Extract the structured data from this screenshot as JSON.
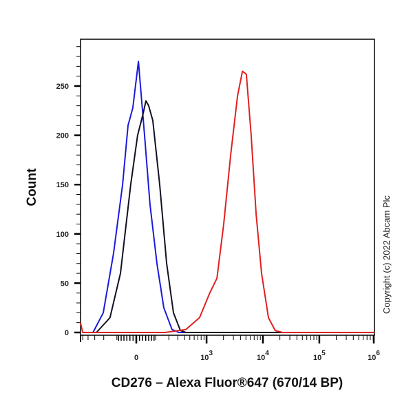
{
  "chart_data": {
    "type": "line",
    "title": "",
    "xlabel": "CD276 – Alexa Fluor®647 (670/14 BP)",
    "ylabel": "Count",
    "x_scale": "biexponential",
    "xlim": [
      -550,
      1000000
    ],
    "ylim": [
      0,
      300
    ],
    "grid": false,
    "x_ticks": [
      {
        "value": 0,
        "base": "0",
        "exp": ""
      },
      {
        "value": 1000,
        "base": "10",
        "exp": "3"
      },
      {
        "value": 10000,
        "base": "10",
        "exp": "4"
      },
      {
        "value": 100000,
        "base": "10",
        "exp": "5"
      },
      {
        "value": 1000000,
        "base": "10",
        "exp": "6"
      }
    ],
    "y_ticks": [
      "0",
      "50",
      "100",
      "150",
      "200",
      "250"
    ],
    "series": [
      {
        "color": "#1a1adc",
        "points": [
          [
            -400,
            0
          ],
          [
            -324,
            0
          ],
          [
            -205,
            20
          ],
          [
            -122,
            80
          ],
          [
            -67,
            150
          ],
          [
            -39,
            210
          ],
          [
            -16,
            228
          ],
          [
            10,
            275
          ],
          [
            39,
            200
          ],
          [
            67,
            130
          ],
          [
            108,
            70
          ],
          [
            157,
            25
          ],
          [
            232,
            3
          ],
          [
            315,
            0
          ],
          [
            1000000,
            0
          ]
        ]
      },
      {
        "color": "#111122",
        "points": [
          [
            -400,
            0
          ],
          [
            -279,
            0
          ],
          [
            -147,
            15
          ],
          [
            -79,
            60
          ],
          [
            -26,
            150
          ],
          [
            6,
            200
          ],
          [
            32,
            222
          ],
          [
            46,
            235
          ],
          [
            60,
            230
          ],
          [
            83,
            215
          ],
          [
            126,
            150
          ],
          [
            180,
            70
          ],
          [
            247,
            20
          ],
          [
            335,
            2
          ],
          [
            422,
            0
          ],
          [
            1000000,
            0
          ]
        ]
      },
      {
        "color": "#e02020",
        "points": [
          [
            -550,
            10
          ],
          [
            -500,
            0
          ],
          [
            168,
            0
          ],
          [
            422,
            3
          ],
          [
            748,
            15
          ],
          [
            1140,
            40
          ],
          [
            1530,
            55
          ],
          [
            2020,
            110
          ],
          [
            2680,
            180
          ],
          [
            3550,
            240
          ],
          [
            4330,
            265
          ],
          [
            5090,
            262
          ],
          [
            6200,
            200
          ],
          [
            7580,
            120
          ],
          [
            9460,
            60
          ],
          [
            12540,
            15
          ],
          [
            16530,
            2
          ],
          [
            22100,
            0
          ],
          [
            1000000,
            0
          ]
        ]
      }
    ]
  },
  "copyright": "Copyright (c) 2022 Abcam Plc"
}
